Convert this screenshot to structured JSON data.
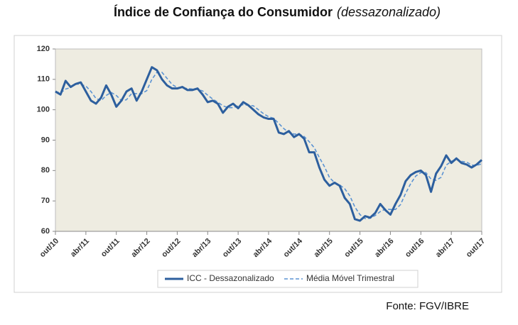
{
  "chart_data": {
    "type": "line",
    "title": "Índice de Confiança do Consumidor",
    "subtitle": "(dessazonalizado)",
    "source": "Fonte: FGV/IBRE",
    "categories": [
      "out/10",
      null,
      null,
      null,
      null,
      null,
      "abr/11",
      null,
      null,
      null,
      null,
      null,
      "out/11",
      null,
      null,
      null,
      null,
      null,
      "abr/12",
      null,
      null,
      null,
      null,
      null,
      "out/12",
      null,
      null,
      null,
      null,
      null,
      "abr/13",
      null,
      null,
      null,
      null,
      null,
      "out/13",
      null,
      null,
      null,
      null,
      null,
      "abr/14",
      null,
      null,
      null,
      null,
      null,
      "out/14",
      null,
      null,
      null,
      null,
      null,
      "abr/15",
      null,
      null,
      null,
      null,
      null,
      "out/15",
      null,
      null,
      null,
      null,
      null,
      "abr/16",
      null,
      null,
      null,
      null,
      null,
      "out/16",
      null,
      null,
      null,
      null,
      null,
      "abr/17",
      null,
      null,
      null,
      null,
      null,
      "out/17"
    ],
    "series": [
      {
        "name": "ICC - Dessazonalizado",
        "color": "#2d5f9e",
        "linestyle": "solid",
        "values": [
          106,
          105,
          109.5,
          107.5,
          108.5,
          109,
          106,
          103,
          102,
          104,
          108,
          105,
          101,
          103,
          106,
          107,
          103,
          106,
          110,
          114,
          113,
          110,
          108,
          107,
          107,
          107.5,
          106.5,
          106.5,
          107,
          105,
          102.5,
          103,
          102,
          99,
          101,
          102,
          100.5,
          102.5,
          101.5,
          100,
          98.5,
          97.5,
          97,
          97,
          92.5,
          92,
          93,
          91,
          92,
          90.5,
          86,
          86,
          81,
          77,
          75,
          76,
          75,
          71,
          69,
          64,
          63.5,
          65,
          64.5,
          66,
          69,
          67,
          65.5,
          69,
          72,
          76.5,
          78.5,
          79.5,
          80,
          78.5,
          73,
          79,
          81.5,
          85,
          82.5,
          84,
          82.5,
          82,
          81,
          82,
          83.5
        ]
      },
      {
        "name": "Média Móvel Trimestral",
        "color": "#5b93d3",
        "linestyle": "dashed",
        "values": [
          106,
          105.5,
          106.8,
          107.3,
          108.5,
          108.3,
          107.8,
          106,
          103.7,
          103,
          104.7,
          105.7,
          104.7,
          103,
          103.3,
          105.3,
          105.3,
          105.3,
          106.3,
          110,
          112.3,
          112.3,
          110.3,
          108.3,
          107.3,
          107.2,
          107,
          106.8,
          106.7,
          106.2,
          104.8,
          103.5,
          102.5,
          101.3,
          100.7,
          100.7,
          101.2,
          101.7,
          101.5,
          101.3,
          100,
          98.7,
          97.7,
          97.2,
          95.5,
          93.8,
          92.5,
          92,
          92,
          91.2,
          89.5,
          87.5,
          84.3,
          81.3,
          77.7,
          76,
          75.3,
          74,
          71.7,
          68,
          65.5,
          64.2,
          64.3,
          65.2,
          66.5,
          67.3,
          67.2,
          67.2,
          68.8,
          72.5,
          75.7,
          78.2,
          79.3,
          79.3,
          77.2,
          76.8,
          77.8,
          81.8,
          83,
          83.8,
          83,
          82.8,
          81.8,
          81.7,
          82.2
        ]
      }
    ],
    "ylim": [
      60,
      120
    ],
    "yticks": [
      60,
      70,
      80,
      90,
      100,
      110,
      120
    ],
    "grid": false,
    "plot_background": "#eeece1",
    "legend": "bottom"
  }
}
